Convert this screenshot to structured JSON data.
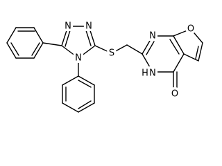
{
  "atoms": {
    "triazole_n1": "N",
    "triazole_n2": "N",
    "triazole_n4": "N",
    "sulfur": "S",
    "pyrimidine_n1": "N",
    "furan_o": "O",
    "nh_h": "H",
    "nh_n": "N",
    "carbonyl_o": "O"
  }
}
